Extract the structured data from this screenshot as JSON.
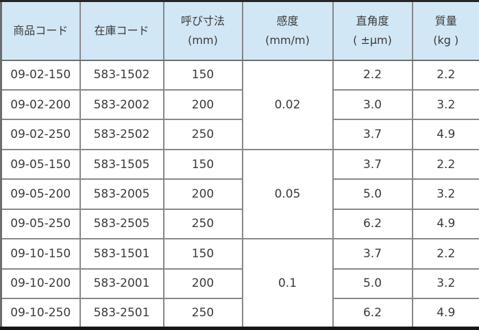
{
  "table": {
    "name": "product-spec-table",
    "colors": {
      "header_bg": "#d2e7f5",
      "grid_line": "#878787",
      "outer_border": "#262626",
      "text": "#3a3a3a"
    },
    "headers": [
      {
        "line1": "商品コード",
        "line2": ""
      },
      {
        "line1": "在庫コード",
        "line2": ""
      },
      {
        "line1": "呼び寸法",
        "line2": "(mm)"
      },
      {
        "line1": "感度",
        "line2": "(mm/m)"
      },
      {
        "line1": "直角度",
        "line2": "( ±μm)"
      },
      {
        "line1": "質量",
        "line2": "(kg )"
      }
    ],
    "groups": [
      {
        "sensitivity": "0.02",
        "rows": [
          {
            "product_code": "09-02-150",
            "stock_code": "583-1502",
            "size": "150",
            "squareness": "2.2",
            "mass": "2.2"
          },
          {
            "product_code": "09-02-200",
            "stock_code": "583-2002",
            "size": "200",
            "squareness": "3.0",
            "mass": "3.2"
          },
          {
            "product_code": "09-02-250",
            "stock_code": "583-2502",
            "size": "250",
            "squareness": "3.7",
            "mass": "4.9"
          }
        ]
      },
      {
        "sensitivity": "0.05",
        "rows": [
          {
            "product_code": "09-05-150",
            "stock_code": "583-1505",
            "size": "150",
            "squareness": "3.7",
            "mass": "2.2"
          },
          {
            "product_code": "09-05-200",
            "stock_code": "583-2005",
            "size": "200",
            "squareness": "5.0",
            "mass": "3.2"
          },
          {
            "product_code": "09-05-250",
            "stock_code": "583-2505",
            "size": "250",
            "squareness": "6.2",
            "mass": "4.9"
          }
        ]
      },
      {
        "sensitivity": "0.1",
        "rows": [
          {
            "product_code": "09-10-150",
            "stock_code": "583-1501",
            "size": "150",
            "squareness": "3.7",
            "mass": "2.2"
          },
          {
            "product_code": "09-10-200",
            "stock_code": "583-2001",
            "size": "200",
            "squareness": "5.0",
            "mass": "3.2"
          },
          {
            "product_code": "09-10-250",
            "stock_code": "583-2501",
            "size": "250",
            "squareness": "6.2",
            "mass": "4.9"
          }
        ]
      }
    ]
  }
}
